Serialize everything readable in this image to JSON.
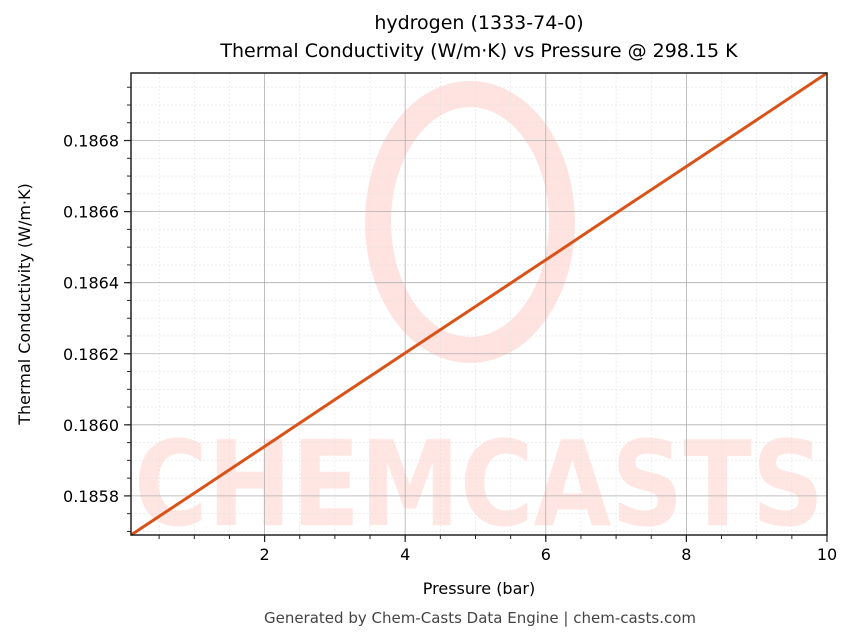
{
  "chart_data": {
    "type": "line",
    "title": "hydrogen (1333-74-0)",
    "subtitle": "Thermal Conductivity (W/m·K) vs Pressure @ 298.15 K",
    "xlabel": "Pressure (bar)",
    "ylabel": "Thermal Conductivity (W/m·K)",
    "xlim": [
      0.1,
      10
    ],
    "ylim": [
      0.18569,
      0.18699
    ],
    "xticks": [
      2,
      4,
      6,
      8,
      10
    ],
    "xtick_labels": [
      "2",
      "4",
      "6",
      "8",
      "10"
    ],
    "yticks": [
      0.1858,
      0.186,
      0.1862,
      0.1864,
      0.1866,
      0.1868
    ],
    "ytick_labels": [
      "0.1858",
      "0.1860",
      "0.1862",
      "0.1864",
      "0.1866",
      "0.1868"
    ],
    "grid": true,
    "legend": null,
    "series": [
      {
        "name": "hydrogen",
        "color": "#d95319",
        "x": [
          0.1,
          1,
          2,
          3,
          4,
          5,
          6,
          7,
          8,
          9,
          10
        ],
        "y": [
          0.18569,
          0.185808,
          0.185939,
          0.186071,
          0.186202,
          0.186333,
          0.186464,
          0.186596,
          0.186727,
          0.186858,
          0.18699
        ]
      }
    ],
    "watermark": "CHEMCASTS"
  },
  "footer": "Generated by Chem-Casts Data Engine | chem-casts.com"
}
